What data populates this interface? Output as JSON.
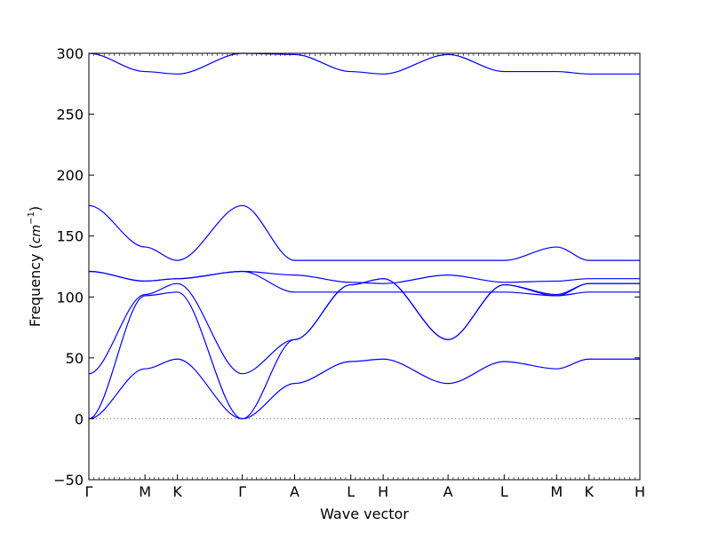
{
  "chart_data": {
    "type": "line",
    "title": "",
    "xlabel": "Wave vector",
    "ylabel": "Frequency",
    "ylabel_unit": "cm",
    "ylabel_exponent": "−1",
    "ylim": [
      -50,
      300
    ],
    "yticks": [
      "−50",
      "0",
      "50",
      "100",
      "150",
      "200",
      "250",
      "300"
    ],
    "ytick_values": [
      -50,
      0,
      50,
      100,
      150,
      200,
      250,
      300
    ],
    "path_labels": [
      "Γ",
      "M",
      "K",
      "Γ",
      "A",
      "L",
      "H",
      "A",
      "L",
      "M",
      "K",
      "H"
    ],
    "path_positions": [
      0,
      0.577,
      0.91,
      1.577,
      2.115,
      2.692,
      3.025,
      3.692,
      4.269,
      4.808,
      5.141,
      5.664
    ],
    "zero_line": true,
    "grid": false,
    "legend": "none",
    "line_color": "#0000ff",
    "bands": [
      {
        "x": [
          0,
          0.577,
          0.91,
          1.577,
          2.115,
          2.692,
          3.025,
          3.692,
          4.269,
          4.808,
          5.141,
          5.664
        ],
        "y": [
          0,
          41,
          49,
          0,
          29,
          47,
          49,
          29,
          47,
          41,
          49,
          49
        ]
      },
      {
        "x": [
          0,
          0.577,
          0.91,
          1.577,
          2.115,
          2.692,
          3.025,
          3.692,
          4.269,
          4.808,
          5.141,
          5.664
        ],
        "y": [
          0,
          101,
          104,
          0,
          65,
          110,
          115,
          65,
          110,
          101,
          111,
          111
        ]
      },
      {
        "x": [
          0,
          0.577,
          0.91,
          1.577,
          2.115,
          2.692,
          3.025,
          3.692,
          4.269,
          4.808,
          5.141,
          5.664
        ],
        "y": [
          37,
          102,
          111,
          37,
          65,
          110,
          115,
          65,
          110,
          102,
          111,
          111
        ]
      },
      {
        "x": [
          0,
          0.577,
          0.91,
          1.577,
          2.115,
          2.692,
          3.025,
          3.692,
          4.269,
          4.808,
          5.141,
          5.664
        ],
        "y": [
          121,
          113,
          115,
          121,
          104,
          104,
          104,
          104,
          104,
          101,
          104,
          104
        ]
      },
      {
        "x": [
          0,
          0.577,
          0.91,
          1.577,
          2.115,
          2.692,
          3.025,
          3.692,
          4.269,
          4.808,
          5.141,
          5.664
        ],
        "y": [
          121,
          113,
          115,
          121,
          118,
          112,
          111,
          118,
          112,
          113,
          115,
          115
        ]
      },
      {
        "x": [
          0,
          0.577,
          0.91,
          1.577,
          2.115,
          2.692,
          3.025,
          3.692,
          4.269,
          4.808,
          5.141,
          5.664
        ],
        "y": [
          175,
          141,
          130,
          175,
          130,
          130,
          130,
          130,
          130,
          141,
          130,
          130
        ]
      },
      {
        "x": [
          0,
          0.577,
          0.91,
          1.577,
          2.115,
          2.692,
          3.025,
          3.692,
          4.269,
          4.808,
          5.141,
          5.664
        ],
        "y": [
          300,
          285,
          283,
          300,
          299,
          285,
          283,
          299,
          285,
          285,
          283,
          283
        ]
      }
    ]
  }
}
